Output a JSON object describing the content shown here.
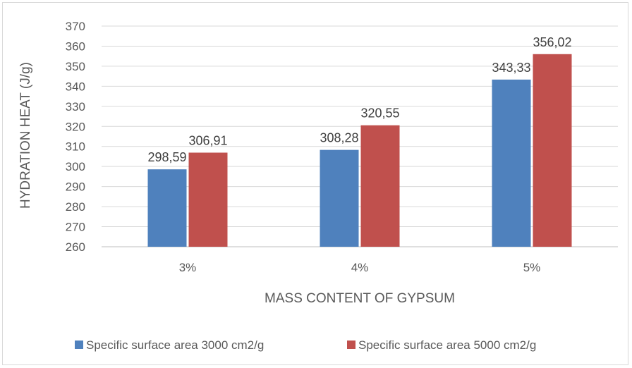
{
  "chart_data": {
    "type": "bar",
    "title": "",
    "xlabel": "MASS CONTENT OF GYPSUM",
    "ylabel": "HYDRATION HEAT (J/g)",
    "categories": [
      "3%",
      "4%",
      "5%"
    ],
    "ylim": [
      260,
      370
    ],
    "yticks": [
      260,
      270,
      280,
      290,
      300,
      310,
      320,
      330,
      340,
      350,
      360,
      370
    ],
    "grid": true,
    "legend_position": "bottom",
    "series": [
      {
        "name": "Specific surface area 3000 cm2/g",
        "values": [
          298.59,
          308.28,
          343.33
        ],
        "labels": [
          "298,59",
          "308,28",
          "343,33"
        ],
        "color": "#4f81bd"
      },
      {
        "name": "Specific surface area 5000 cm2/g",
        "values": [
          306.91,
          320.55,
          356.02
        ],
        "labels": [
          "306,91",
          "320,55",
          "356,02"
        ],
        "color": "#c0504d"
      }
    ]
  }
}
